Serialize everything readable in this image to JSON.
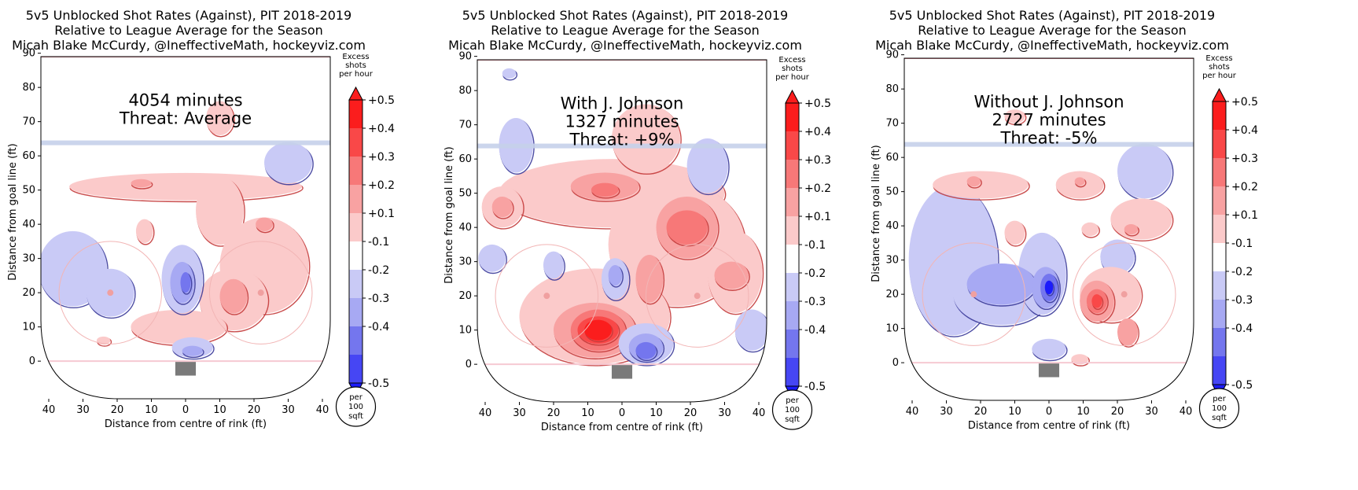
{
  "palette": {
    "pos5": "#fb1d1d",
    "pos4": "#f94848",
    "pos3": "#f77878",
    "pos2": "#f8a2a2",
    "pos1": "#fbcaca",
    "neg1": "#c9caf6",
    "neg2": "#a7a9f3",
    "neg3": "#7476ee",
    "neg4": "#4646f4",
    "neg5": "#1b1bfb",
    "line_red": "#c43a3a",
    "line_blue": "#3a3a9a",
    "blue_line": "#c5d0ea",
    "goal_line": "#f6c9d2",
    "net": "#7a7a7a"
  },
  "colorbar": {
    "title": [
      "Excess",
      "shots",
      "per hour"
    ],
    "ticks": [
      "+0.5",
      "+0.4",
      "+0.3",
      "+0.2",
      "+0.1",
      "-0.1",
      "-0.2",
      "-0.3",
      "-0.4",
      "-0.5"
    ],
    "unit": [
      "per",
      "100",
      "sqft"
    ]
  },
  "chart_data": [
    {
      "type": "heatmap",
      "title": [
        "5v5 Unblocked Shot Rates (Against), PIT 2018-2019",
        "Relative to League Average for the Season",
        "Micah Blake McCurdy, @IneffectiveMath, hockeyviz.com"
      ],
      "annotation": [
        "4054 minutes",
        "Threat: Average"
      ],
      "xlabel": "Distance from centre of rink (ft)",
      "ylabel": "Distance from goal line (ft)",
      "x_ticks": [
        "40",
        "30",
        "20",
        "10",
        "0",
        "10",
        "20",
        "30",
        "40"
      ],
      "y_ticks": [
        "0",
        "10",
        "20",
        "30",
        "40",
        "50",
        "60",
        "70",
        "80",
        "90"
      ],
      "xlim": [
        -42.5,
        42.5
      ],
      "ylim": [
        -11,
        89
      ],
      "blobs": [
        {
          "x": 0,
          "y": 51,
          "rx": 34,
          "ry": 4,
          "level": 1
        },
        {
          "x": -13,
          "y": 52,
          "rx": 3,
          "ry": 1.2,
          "level": 2
        },
        {
          "x": 10,
          "y": 44,
          "rx": 7,
          "ry": 10,
          "level": 1
        },
        {
          "x": 23,
          "y": 28,
          "rx": 13,
          "ry": 14,
          "level": 1
        },
        {
          "x": 14,
          "y": 18,
          "rx": 10,
          "ry": 9,
          "level": 1
        },
        {
          "x": 14,
          "y": 19,
          "rx": 4,
          "ry": 5,
          "level": 2
        },
        {
          "x": 23,
          "y": 40,
          "rx": 2.5,
          "ry": 2,
          "level": 2
        },
        {
          "x": 10,
          "y": 71,
          "rx": 4,
          "ry": 5,
          "level": 1
        },
        {
          "x": -12,
          "y": 38,
          "rx": 2.5,
          "ry": 3.5,
          "level": 1
        },
        {
          "x": -2,
          "y": 10,
          "rx": 14,
          "ry": 5,
          "level": 1
        },
        {
          "x": -24,
          "y": 6,
          "rx": 2,
          "ry": 1.2,
          "level": 1
        },
        {
          "x": -33,
          "y": 27,
          "rx": 10,
          "ry": 11,
          "level": -1
        },
        {
          "x": -22,
          "y": 20,
          "rx": 7,
          "ry": 7,
          "level": -1
        },
        {
          "x": 30,
          "y": 58,
          "rx": 7,
          "ry": 6,
          "level": -1
        },
        {
          "x": -1,
          "y": 24,
          "rx": 6,
          "ry": 10,
          "level": -1
        },
        {
          "x": -1,
          "y": 23,
          "rx": 3.5,
          "ry": 6,
          "level": -2
        },
        {
          "x": 0,
          "y": 23,
          "rx": 1.5,
          "ry": 3,
          "level": -3
        },
        {
          "x": 2,
          "y": 4,
          "rx": 6,
          "ry": 3,
          "level": -1
        },
        {
          "x": 2,
          "y": 3,
          "rx": 3,
          "ry": 1.5,
          "level": -2
        }
      ]
    },
    {
      "type": "heatmap",
      "title": [
        "5v5 Unblocked Shot Rates (Against), PIT 2018-2019",
        "Relative to League Average for the Season",
        "Micah Blake McCurdy, @IneffectiveMath, hockeyviz.com"
      ],
      "annotation": [
        "With J. Johnson",
        "1327 minutes",
        "Threat: +9%"
      ],
      "xlabel": "Distance from centre of rink (ft)",
      "ylabel": "Distance from goal line (ft)",
      "x_ticks": [
        "40",
        "30",
        "20",
        "10",
        "0",
        "10",
        "20",
        "30",
        "40"
      ],
      "y_ticks": [
        "0",
        "10",
        "20",
        "30",
        "40",
        "50",
        "60",
        "70",
        "80",
        "90"
      ],
      "xlim": [
        -42.5,
        42.5
      ],
      "ylim": [
        -11,
        89
      ],
      "blobs": [
        {
          "x": -3,
          "y": 50,
          "rx": 33,
          "ry": 10,
          "level": 1
        },
        {
          "x": 7,
          "y": 66,
          "rx": 10,
          "ry": 10,
          "level": 1
        },
        {
          "x": 16,
          "y": 35,
          "rx": 20,
          "ry": 18,
          "level": 1
        },
        {
          "x": -8,
          "y": 14,
          "rx": 22,
          "ry": 14,
          "level": 1
        },
        {
          "x": 33,
          "y": 27,
          "rx": 8,
          "ry": 12,
          "level": 1
        },
        {
          "x": -35,
          "y": 46,
          "rx": 6,
          "ry": 6,
          "level": 1
        },
        {
          "x": -5,
          "y": 52,
          "rx": 10,
          "ry": 4,
          "level": 2
        },
        {
          "x": -5,
          "y": 51,
          "rx": 4,
          "ry": 2,
          "level": 3
        },
        {
          "x": 19,
          "y": 40,
          "rx": 9,
          "ry": 9,
          "level": 2
        },
        {
          "x": 19,
          "y": 40,
          "rx": 6,
          "ry": 5,
          "level": 3
        },
        {
          "x": 8,
          "y": 25,
          "rx": 4,
          "ry": 7,
          "level": 2
        },
        {
          "x": -35,
          "y": 46,
          "rx": 3,
          "ry": 3,
          "level": 2
        },
        {
          "x": 32,
          "y": 26,
          "rx": 5,
          "ry": 4,
          "level": 2
        },
        {
          "x": -8,
          "y": 10,
          "rx": 12,
          "ry": 8,
          "level": 2
        },
        {
          "x": -7,
          "y": 10,
          "rx": 8,
          "ry": 6,
          "level": 3
        },
        {
          "x": -7,
          "y": 10,
          "rx": 6,
          "ry": 4,
          "level": 4
        },
        {
          "x": -7,
          "y": 10,
          "rx": 4,
          "ry": 3,
          "level": 5
        },
        {
          "x": -31,
          "y": 64,
          "rx": 5,
          "ry": 8,
          "level": -1
        },
        {
          "x": 25,
          "y": 58,
          "rx": 6,
          "ry": 8,
          "level": -1
        },
        {
          "x": -38,
          "y": 31,
          "rx": 4,
          "ry": 4,
          "level": -1
        },
        {
          "x": -20,
          "y": 29,
          "rx": 3,
          "ry": 4,
          "level": -1
        },
        {
          "x": -2,
          "y": 25,
          "rx": 4,
          "ry": 6,
          "level": -1
        },
        {
          "x": -2,
          "y": 26,
          "rx": 2,
          "ry": 3,
          "level": -2
        },
        {
          "x": 38,
          "y": 10,
          "rx": 5,
          "ry": 6,
          "level": -1
        },
        {
          "x": 7,
          "y": 6,
          "rx": 8,
          "ry": 6,
          "level": -1
        },
        {
          "x": 7,
          "y": 5,
          "rx": 5,
          "ry": 4,
          "level": -2
        },
        {
          "x": 7,
          "y": 4,
          "rx": 3,
          "ry": 2.5,
          "level": -3
        },
        {
          "x": -33,
          "y": 85,
          "rx": 2,
          "ry": 1.5,
          "level": -1
        }
      ]
    },
    {
      "type": "heatmap",
      "title": [
        "5v5 Unblocked Shot Rates (Against), PIT 2018-2019",
        "Relative to League Average for the Season",
        "Micah Blake McCurdy, @IneffectiveMath, hockeyviz.com"
      ],
      "annotation": [
        "Without J. Johnson",
        "2727 minutes",
        "Threat: -5%"
      ],
      "xlabel": "Distance from centre of rink (ft)",
      "ylabel": "Distance from goal line (ft)",
      "x_ticks": [
        "40",
        "30",
        "20",
        "10",
        "0",
        "10",
        "20",
        "30",
        "40"
      ],
      "y_ticks": [
        "0",
        "10",
        "20",
        "30",
        "40",
        "50",
        "60",
        "70",
        "80",
        "90"
      ],
      "xlim": [
        -42.5,
        42.5
      ],
      "ylim": [
        -11,
        89
      ],
      "blobs": [
        {
          "x": -28,
          "y": 30,
          "rx": 13,
          "ry": 22,
          "level": -1
        },
        {
          "x": -14,
          "y": 20,
          "rx": 14,
          "ry": 9,
          "level": -1
        },
        {
          "x": -2,
          "y": 26,
          "rx": 7,
          "ry": 12,
          "level": -1
        },
        {
          "x": 28,
          "y": 56,
          "rx": 8,
          "ry": 8,
          "level": -1
        },
        {
          "x": 20,
          "y": 31,
          "rx": 5,
          "ry": 5,
          "level": -1
        },
        {
          "x": 0,
          "y": 4,
          "rx": 5,
          "ry": 3,
          "level": -1
        },
        {
          "x": -14,
          "y": 23,
          "rx": 10,
          "ry": 6,
          "level": -2
        },
        {
          "x": -1,
          "y": 22,
          "rx": 4,
          "ry": 6,
          "level": -2
        },
        {
          "x": 0,
          "y": 22,
          "rx": 2.5,
          "ry": 4,
          "level": -3
        },
        {
          "x": 0,
          "y": 22,
          "rx": 1.2,
          "ry": 2,
          "level": -5
        },
        {
          "x": 18,
          "y": 20,
          "rx": 9,
          "ry": 8,
          "level": 1
        },
        {
          "x": 14,
          "y": 18,
          "rx": 5,
          "ry": 6,
          "level": 2
        },
        {
          "x": 14,
          "y": 18,
          "rx": 3,
          "ry": 3.5,
          "level": 3
        },
        {
          "x": 14,
          "y": 18,
          "rx": 1.5,
          "ry": 2,
          "level": 4
        },
        {
          "x": 23,
          "y": 9,
          "rx": 3,
          "ry": 4,
          "level": 2
        },
        {
          "x": 27,
          "y": 42,
          "rx": 9,
          "ry": 6,
          "level": 1
        },
        {
          "x": 24,
          "y": 39,
          "rx": 2,
          "ry": 1.5,
          "level": 2
        },
        {
          "x": 12,
          "y": 39,
          "rx": 2.5,
          "ry": 2,
          "level": 1
        },
        {
          "x": -20,
          "y": 52,
          "rx": 14,
          "ry": 4,
          "level": 1
        },
        {
          "x": -22,
          "y": 53,
          "rx": 2,
          "ry": 1.5,
          "level": 2
        },
        {
          "x": 9,
          "y": 52,
          "rx": 7,
          "ry": 4,
          "level": 1
        },
        {
          "x": 9,
          "y": 53,
          "rx": 1.5,
          "ry": 1.2,
          "level": 2
        },
        {
          "x": -10,
          "y": 38,
          "rx": 3,
          "ry": 3.5,
          "level": 1
        },
        {
          "x": -10,
          "y": 72,
          "rx": 3,
          "ry": 2,
          "level": 1
        },
        {
          "x": 9,
          "y": 1,
          "rx": 2.5,
          "ry": 1.5,
          "level": 1
        }
      ]
    }
  ]
}
